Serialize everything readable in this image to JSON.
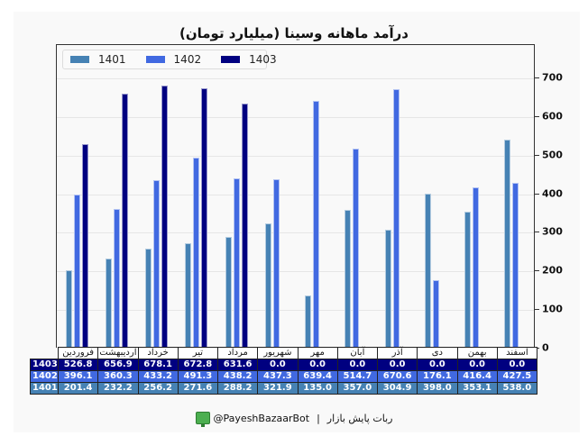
{
  "title": "درآمد ماهانه وسینا (میلیارد تومان)",
  "legend": [
    {
      "label": "1401",
      "color": "#4682b4"
    },
    {
      "label": "1402",
      "color": "#4169e1"
    },
    {
      "label": "1403",
      "color": "#000080"
    }
  ],
  "yaxis": {
    "ticks": [
      "0",
      "100",
      "200",
      "300",
      "400",
      "500",
      "600",
      "700"
    ]
  },
  "table": {
    "months": [
      "فروردین",
      "اردیبهشت",
      "خرداد",
      "تیر",
      "مرداد",
      "شهریور",
      "مهر",
      "آبان",
      "آذر",
      "دی",
      "بهمن",
      "اسفند"
    ],
    "rows": [
      {
        "label": "1403",
        "color": "#000080",
        "values": [
          "526.8",
          "656.9",
          "678.1",
          "672.8",
          "631.6",
          "0.0",
          "0.0",
          "0.0",
          "0.0",
          "0.0",
          "0.0",
          "0.0"
        ]
      },
      {
        "label": "1402",
        "color": "#4169e1",
        "values": [
          "396.1",
          "360.3",
          "433.2",
          "491.3",
          "438.2",
          "437.3",
          "639.4",
          "514.7",
          "670.6",
          "176.1",
          "416.4",
          "427.5"
        ]
      },
      {
        "label": "1401",
        "color": "#4682b4",
        "values": [
          "201.4",
          "232.2",
          "256.2",
          "271.6",
          "288.2",
          "321.9",
          "135.0",
          "357.0",
          "304.9",
          "398.0",
          "353.1",
          "538.0"
        ]
      }
    ]
  },
  "footer": {
    "handle": "@PayeshBazaarBot",
    "separator": "|",
    "name": "ربات پایش بازار"
  },
  "chart_data": {
    "type": "bar",
    "title": "درآمد ماهانه وسینا (میلیارد تومان)",
    "xlabel": "",
    "ylabel": "",
    "ylim": [
      0,
      780
    ],
    "yticks": [
      0,
      100,
      200,
      300,
      400,
      500,
      600,
      700
    ],
    "grid": true,
    "legend_position": "upper left",
    "categories": [
      "فروردین",
      "اردیبهشت",
      "خرداد",
      "تیر",
      "مرداد",
      "شهریور",
      "مهر",
      "آبان",
      "آذر",
      "دی",
      "بهمن",
      "اسفند"
    ],
    "series": [
      {
        "name": "1401",
        "color": "#4682b4",
        "values": [
          201.4,
          232.2,
          256.2,
          271.6,
          288.2,
          321.9,
          135.0,
          357.0,
          304.9,
          398.0,
          353.1,
          538.0
        ]
      },
      {
        "name": "1402",
        "color": "#4169e1",
        "values": [
          396.1,
          360.3,
          433.2,
          491.3,
          438.2,
          437.3,
          639.4,
          514.7,
          670.6,
          176.1,
          416.4,
          427.5
        ]
      },
      {
        "name": "1403",
        "color": "#000080",
        "values": [
          526.8,
          656.9,
          678.1,
          672.8,
          631.6,
          0.0,
          0.0,
          0.0,
          0.0,
          0.0,
          0.0,
          0.0
        ]
      }
    ]
  }
}
